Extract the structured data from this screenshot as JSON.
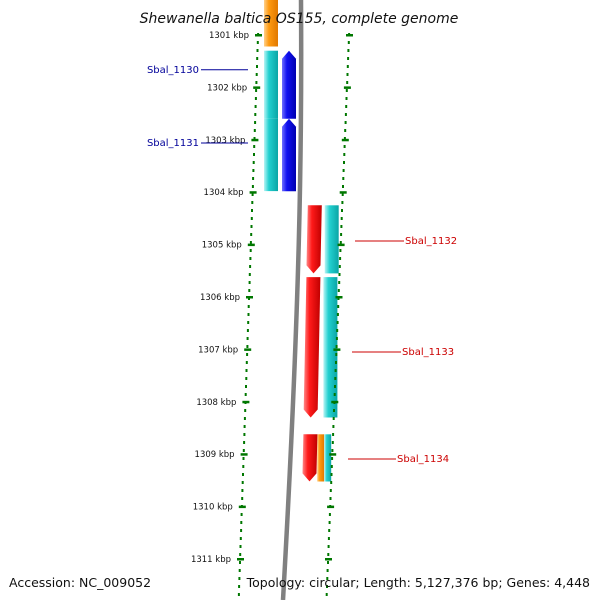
{
  "title": "Shewanella baltica OS155, complete genome",
  "footer": {
    "accession": "Accession: NC_009052",
    "summary": "Topology: circular; Length: 5,127,376 bp; Genes: 4,448"
  },
  "position_scale": {
    "unit": "kbp",
    "ticks": [
      "1301 kbp",
      "1302 kbp",
      "1303 kbp",
      "1304 kbp",
      "1305 kbp",
      "1306 kbp",
      "1307 kbp",
      "1308 kbp",
      "1309 kbp",
      "1310 kbp",
      "1311 kbp"
    ]
  },
  "genes": [
    {
      "label": "Sbal_1130",
      "strand": "forward",
      "start_kbp": 1301.3,
      "end_kbp": 1302.6,
      "color": "#0000dd"
    },
    {
      "label": "Sbal_1131",
      "strand": "forward",
      "start_kbp": 1302.6,
      "end_kbp": 1303.98,
      "color": "#0000dd"
    },
    {
      "label": "Sbal_1132",
      "strand": "reverse",
      "start_kbp": 1304.25,
      "end_kbp": 1305.55,
      "color": "#ff0000"
    },
    {
      "label": "Sbal_1133",
      "strand": "reverse",
      "start_kbp": 1305.62,
      "end_kbp": 1308.3,
      "color": "#ff0000"
    },
    {
      "label": "Sbal_1134",
      "strand": "reverse",
      "start_kbp": 1308.62,
      "end_kbp": 1309.52,
      "color": "#ff0000"
    }
  ],
  "feature_bands": [
    {
      "strand": "forward",
      "start_kbp": 1300.0,
      "end_kbp": 1301.22,
      "color": "#ff8c00"
    },
    {
      "strand": "forward",
      "start_kbp": 1301.3,
      "end_kbp": 1302.6,
      "color": "#00cccc"
    },
    {
      "strand": "forward",
      "start_kbp": 1302.6,
      "end_kbp": 1303.98,
      "color": "#00cccc"
    },
    {
      "strand": "reverse",
      "start_kbp": 1304.25,
      "end_kbp": 1305.55,
      "color": "#00cccc"
    },
    {
      "strand": "reverse",
      "start_kbp": 1305.62,
      "end_kbp": 1308.3,
      "color": "#00cccc"
    },
    {
      "strand": "reverse",
      "start_kbp": 1308.62,
      "end_kbp": 1309.52,
      "color": "#ff8c00"
    },
    {
      "strand": "reverse",
      "start_kbp": 1308.62,
      "end_kbp": 1309.52,
      "color": "#00cccc"
    }
  ],
  "colors": {
    "forward_label": "#000099",
    "reverse_label": "#cc0000",
    "backbone": "#808080",
    "dotted_track": "#007700",
    "orange_feature": "#ff8c00",
    "cyan_feature": "#00cccc"
  }
}
